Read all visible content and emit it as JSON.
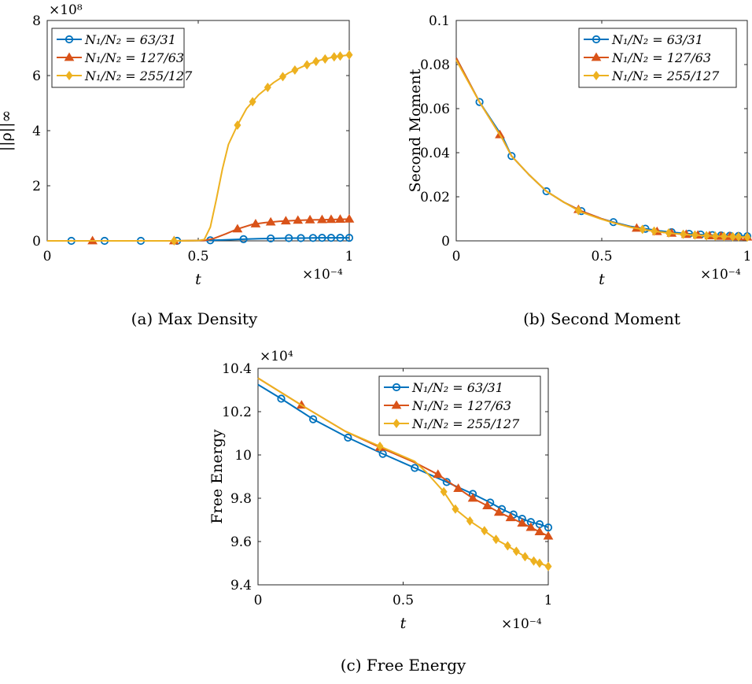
{
  "series_colors": [
    "#0072BD",
    "#D95319",
    "#EDB120"
  ],
  "legend_entries": [
    "N₁/N₂ = 63/31",
    "N₁/N₂ = 127/63",
    "N₁/N₂ = 255/127"
  ],
  "chart_data": [
    {
      "type": "line",
      "caption": "(a) Max Density",
      "xlabel": "t",
      "ylabel": "||ρ||∞",
      "x_multiplier": "×10⁻⁴",
      "y_multiplier": "×10⁸",
      "xlim": [
        0,
        1
      ],
      "ylim": [
        0,
        8
      ],
      "xticks": [
        0,
        0.5,
        1
      ],
      "yticks": [
        0,
        2,
        4,
        6,
        8
      ],
      "legend": "top-left",
      "series": [
        {
          "name": "N₁/N₂ = 63/31",
          "marker": "circle",
          "x": [
            0,
            0.08,
            0.19,
            0.31,
            0.43,
            0.52,
            0.54,
            0.58,
            0.65,
            0.7,
            0.75,
            0.8,
            0.85,
            0.9,
            0.95,
            1.0
          ],
          "y": [
            0,
            0,
            0,
            0,
            0,
            0.01,
            0.02,
            0.03,
            0.06,
            0.08,
            0.09,
            0.1,
            0.1,
            0.11,
            0.11,
            0.11
          ],
          "mx": [
            0.08,
            0.19,
            0.31,
            0.43,
            0.54,
            0.65,
            0.74,
            0.8,
            0.84,
            0.88,
            0.91,
            0.94,
            0.97,
            1.0
          ]
        },
        {
          "name": "N₁/N₂ = 127/63",
          "marker": "triangle",
          "x": [
            0,
            0.15,
            0.42,
            0.52,
            0.55,
            0.59,
            0.63,
            0.68,
            0.72,
            0.77,
            0.82,
            0.87,
            0.92,
            0.96,
            1.0
          ],
          "y": [
            0,
            0,
            0,
            0.01,
            0.08,
            0.25,
            0.43,
            0.6,
            0.66,
            0.71,
            0.74,
            0.76,
            0.77,
            0.78,
            0.79
          ],
          "mx": [
            0.15,
            0.42,
            0.63,
            0.69,
            0.74,
            0.79,
            0.83,
            0.87,
            0.91,
            0.94,
            0.97,
            1.0
          ]
        },
        {
          "name": "N₁/N₂ = 255/127",
          "marker": "diamond",
          "x": [
            0,
            0.42,
            0.5,
            0.52,
            0.54,
            0.56,
            0.58,
            0.6,
            0.63,
            0.66,
            0.7,
            0.75,
            0.8,
            0.85,
            0.9,
            0.95,
            1.0
          ],
          "y": [
            0,
            0,
            0.01,
            0.05,
            0.5,
            1.5,
            2.6,
            3.5,
            4.2,
            4.8,
            5.3,
            5.75,
            6.1,
            6.35,
            6.55,
            6.68,
            6.75
          ],
          "mx": [
            0.42,
            0.63,
            0.68,
            0.73,
            0.78,
            0.82,
            0.86,
            0.89,
            0.92,
            0.95,
            0.97,
            1.0
          ]
        }
      ]
    },
    {
      "type": "line",
      "caption": "(b) Second Moment",
      "xlabel": "t",
      "ylabel": "Second Moment",
      "x_multiplier": "×10⁻⁴",
      "xlim": [
        0,
        1
      ],
      "ylim": [
        0,
        0.1
      ],
      "xticks": [
        0,
        0.5,
        1
      ],
      "yticks": [
        0,
        0.02,
        0.04,
        0.06,
        0.08,
        0.1
      ],
      "legend": "top-right",
      "series": [
        {
          "name": "N₁/N₂ = 63/31",
          "marker": "circle",
          "x": [
            0,
            0.08,
            0.16,
            0.19,
            0.25,
            0.31,
            0.37,
            0.43,
            0.5,
            0.54,
            0.6,
            0.65,
            0.7,
            0.75,
            0.8,
            0.85,
            0.9,
            0.95,
            1.0
          ],
          "y": [
            0.083,
            0.063,
            0.047,
            0.0385,
            0.03,
            0.0225,
            0.0175,
            0.0135,
            0.01,
            0.0085,
            0.0065,
            0.0055,
            0.0045,
            0.0038,
            0.0032,
            0.0028,
            0.0025,
            0.0023,
            0.0021
          ],
          "mx": [
            0.08,
            0.19,
            0.31,
            0.43,
            0.54,
            0.65,
            0.74,
            0.8,
            0.84,
            0.88,
            0.91,
            0.94,
            0.97,
            1.0
          ]
        },
        {
          "name": "N₁/N₂ = 127/63",
          "marker": "triangle",
          "x": [
            0,
            0.08,
            0.16,
            0.19,
            0.25,
            0.31,
            0.37,
            0.43,
            0.5,
            0.54,
            0.6,
            0.65,
            0.7,
            0.75,
            0.8,
            0.85,
            0.9,
            0.95,
            1.0
          ],
          "y": [
            0.083,
            0.063,
            0.046,
            0.0385,
            0.03,
            0.0225,
            0.0175,
            0.0135,
            0.01,
            0.0083,
            0.0062,
            0.005,
            0.004,
            0.0033,
            0.0028,
            0.0024,
            0.0021,
            0.0019,
            0.0017
          ],
          "mx": [
            0.15,
            0.42,
            0.62,
            0.69,
            0.74,
            0.79,
            0.83,
            0.87,
            0.91,
            0.94,
            0.97,
            1.0
          ]
        },
        {
          "name": "N₁/N₂ = 255/127",
          "marker": "diamond",
          "x": [
            0,
            0.08,
            0.16,
            0.19,
            0.25,
            0.31,
            0.37,
            0.43,
            0.5,
            0.54,
            0.6,
            0.65,
            0.7,
            0.75,
            0.8,
            0.85,
            0.9,
            0.95,
            1.0
          ],
          "y": [
            0.082,
            0.063,
            0.046,
            0.0385,
            0.03,
            0.0225,
            0.0175,
            0.013,
            0.0098,
            0.0082,
            0.0061,
            0.005,
            0.004,
            0.0033,
            0.0028,
            0.0024,
            0.0021,
            0.0019,
            0.0017
          ],
          "mx": [
            0.42,
            0.64,
            0.68,
            0.73,
            0.78,
            0.82,
            0.86,
            0.89,
            0.92,
            0.95,
            0.97,
            1.0
          ]
        }
      ]
    },
    {
      "type": "line",
      "caption": "(c) Free Energy",
      "xlabel": "t",
      "ylabel": "Free Energy",
      "x_multiplier": "×10⁻⁴",
      "y_multiplier": "×10⁴",
      "xlim": [
        0,
        1
      ],
      "ylim": [
        9.4,
        10.4
      ],
      "xticks": [
        0,
        0.5,
        1
      ],
      "yticks": [
        9.4,
        9.6,
        9.8,
        10,
        10.2,
        10.4
      ],
      "ytick_labels": [
        "9.4",
        "9.6",
        "9.8",
        "10",
        "10.2",
        "10.4"
      ],
      "legend": "top-right",
      "series": [
        {
          "name": "N₁/N₂ = 63/31",
          "marker": "circle",
          "x": [
            0,
            0.08,
            0.19,
            0.31,
            0.43,
            0.54,
            0.65,
            0.74,
            0.8,
            0.84,
            0.88,
            0.91,
            0.94,
            0.97,
            1.0
          ],
          "y": [
            10.325,
            10.26,
            10.165,
            10.08,
            10.005,
            9.94,
            9.875,
            9.82,
            9.78,
            9.75,
            9.725,
            9.705,
            9.69,
            9.68,
            9.665
          ],
          "mx": [
            0.08,
            0.19,
            0.31,
            0.43,
            0.54,
            0.65,
            0.74,
            0.8,
            0.84,
            0.88,
            0.91,
            0.94,
            0.97,
            1.0
          ]
        },
        {
          "name": "N₁/N₂ = 127/63",
          "marker": "triangle",
          "x": [
            0,
            0.15,
            0.3,
            0.42,
            0.54,
            0.62,
            0.69,
            0.74,
            0.79,
            0.83,
            0.87,
            0.91,
            0.94,
            0.97,
            1.0
          ],
          "y": [
            10.355,
            10.23,
            10.11,
            10.035,
            9.965,
            9.91,
            9.845,
            9.8,
            9.765,
            9.735,
            9.71,
            9.685,
            9.665,
            9.645,
            9.625
          ],
          "mx": [
            0.15,
            0.42,
            0.62,
            0.69,
            0.74,
            0.79,
            0.83,
            0.87,
            0.91,
            0.94,
            0.97,
            1.0
          ]
        },
        {
          "name": "N₁/N₂ = 255/127",
          "marker": "diamond",
          "x": [
            0,
            0.15,
            0.3,
            0.42,
            0.54,
            0.58,
            0.64,
            0.68,
            0.73,
            0.78,
            0.82,
            0.86,
            0.89,
            0.92,
            0.95,
            0.97,
            1.0
          ],
          "y": [
            10.355,
            10.23,
            10.11,
            10.04,
            9.97,
            9.92,
            9.83,
            9.75,
            9.695,
            9.65,
            9.61,
            9.58,
            9.555,
            9.53,
            9.51,
            9.5,
            9.485
          ],
          "mx": [
            0.42,
            0.64,
            0.68,
            0.73,
            0.78,
            0.82,
            0.86,
            0.89,
            0.92,
            0.95,
            0.97,
            1.0
          ]
        }
      ]
    }
  ]
}
